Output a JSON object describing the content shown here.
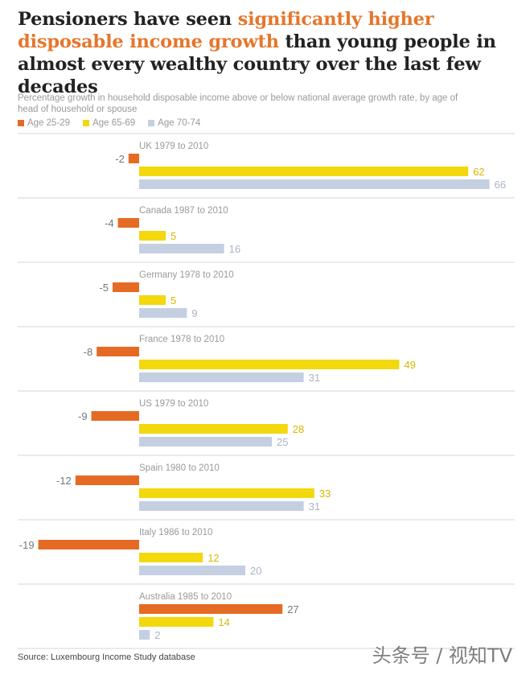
{
  "title": {
    "part1": "Pensioners have seen ",
    "highlight": "significantly higher disposable income growth",
    "part2": " than young people in almost every wealthy country over the last few decades"
  },
  "subtitle": "Percentage growth in household disposable income above or below national average growth rate, by age of head of household or spouse",
  "legend": [
    {
      "label": "Age 25-29",
      "color": "#e56b24"
    },
    {
      "label": "Age 65-69",
      "color": "#f2d80c"
    },
    {
      "label": "Age 70-74",
      "color": "#c5cfe2"
    }
  ],
  "source": "Source: Luxembourg Income Study database",
  "watermark": "头条号 / 视知TV",
  "chart_data": {
    "type": "bar",
    "orientation": "horizontal",
    "grouped": true,
    "categories": [
      "UK 1979 to 2010",
      "Canada 1987 to 2010",
      "Germany 1978 to 2010",
      "France 1978 to 2010",
      "US 1979 to 2010",
      "Spain 1980 to 2010",
      "Italy 1986 to 2010",
      "Australia 1985 to 2010"
    ],
    "series": [
      {
        "name": "Age 25-29",
        "color": "#e56b24",
        "values": [
          -2,
          -4,
          -5,
          -8,
          -9,
          -12,
          -19,
          27
        ]
      },
      {
        "name": "Age 65-69",
        "color": "#f2d80c",
        "values": [
          62,
          5,
          5,
          49,
          28,
          33,
          12,
          14
        ]
      },
      {
        "name": "Age 70-74",
        "color": "#c5cfe2",
        "values": [
          66,
          16,
          9,
          31,
          25,
          31,
          20,
          2
        ]
      }
    ],
    "value_label_colors": [
      "#777777",
      "#d8b800",
      "#aab4c6"
    ],
    "grid": false,
    "legend_position": "top-left"
  }
}
